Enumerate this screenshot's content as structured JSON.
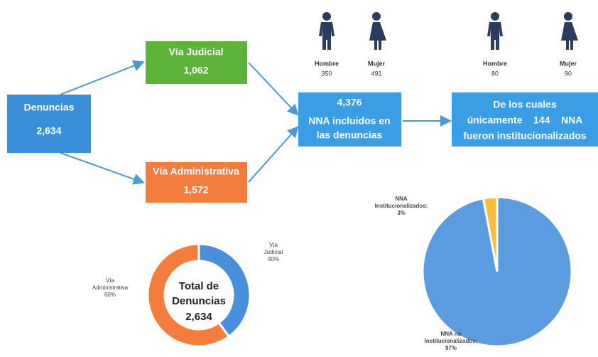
{
  "nodes": {
    "denuncias": {
      "label": "Denuncias",
      "value": "2,634"
    },
    "judicial": {
      "label": "Vía Judicial",
      "value": "1,062"
    },
    "administrativa": {
      "label": "Vía Administrativa",
      "value": "1,572"
    },
    "incluidos": {
      "value": "4,376",
      "lines": [
        "NNA incluidos en",
        "las denuncias"
      ]
    },
    "institucionalizados": {
      "lines": [
        "De los cuales",
        "únicamente    144    NNA",
        "fueron institucionalizados"
      ]
    }
  },
  "figures": [
    {
      "label": "Hombre",
      "value": "350"
    },
    {
      "label": "Mujer",
      "value": "491"
    },
    {
      "label": "Hombre",
      "value": "80"
    },
    {
      "label": "Mujer",
      "value": "90"
    }
  ],
  "chart_data": [
    {
      "type": "donut",
      "center_label": [
        "Total de",
        "Denuncias"
      ],
      "center_value": "2,634",
      "categories": [
        "Vía Judicial",
        "Vía Administrativa"
      ],
      "values": [
        40,
        60
      ],
      "value_labels": [
        "40%",
        "60%"
      ],
      "colors": [
        "#4a8fdc",
        "#f47c3c"
      ]
    },
    {
      "type": "pie",
      "categories": [
        "NNA Institucionalizados;",
        "NNA no Institucionalizados;"
      ],
      "values": [
        3,
        97
      ],
      "value_labels": [
        "3%",
        "97%"
      ],
      "colors": [
        "#f7bd3b",
        "#5b9be0"
      ]
    }
  ]
}
